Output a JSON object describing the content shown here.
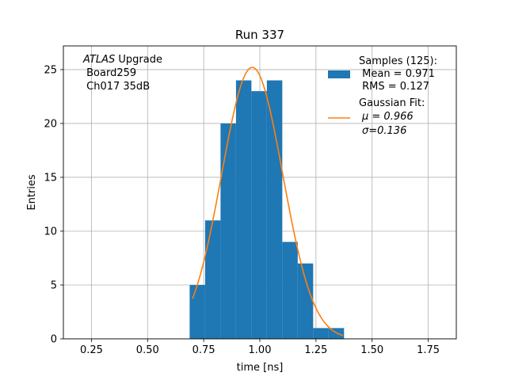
{
  "chart_data": {
    "type": "bar",
    "title": "Run 337",
    "xlabel": "time [ns]",
    "ylabel": "Entries",
    "xlim": [
      0.125,
      1.875
    ],
    "ylim": [
      0,
      27.2
    ],
    "xticks": [
      0.25,
      0.5,
      0.75,
      1.0,
      1.25,
      1.5,
      1.75
    ],
    "xtick_labels": [
      "0.25",
      "0.50",
      "0.75",
      "1.00",
      "1.25",
      "1.50",
      "1.75"
    ],
    "yticks": [
      0,
      5,
      10,
      15,
      20,
      25
    ],
    "ytick_labels": [
      "0",
      "5",
      "10",
      "15",
      "20",
      "25"
    ],
    "grid": true,
    "bin_edges": [
      0.6875,
      0.7563,
      0.825,
      0.8938,
      0.9625,
      1.0313,
      1.1,
      1.1688,
      1.2375,
      1.3063,
      1.375
    ],
    "values": [
      5,
      11,
      20,
      24,
      23,
      24,
      9,
      7,
      1,
      1
    ],
    "bar_color": "#1f77b4",
    "fit": {
      "mu": 0.966,
      "sigma": 0.136,
      "x_range": [
        0.7,
        1.37
      ],
      "color": "#ff7f0e"
    },
    "annotation": {
      "italic": "ATLAS",
      "rest": " Upgrade",
      "line2": " Board259",
      "line3": " Ch017 35dB"
    },
    "legend": {
      "position": "top-right",
      "entries": [
        {
          "kind": "patch",
          "lines": [
            "Samples (125):",
            " Mean = 0.971",
            " RMS = 0.127"
          ]
        },
        {
          "kind": "line",
          "lines": [
            "Gaussian Fit:",
            "μ = 0.966",
            "σ=0.136"
          ]
        }
      ]
    }
  }
}
